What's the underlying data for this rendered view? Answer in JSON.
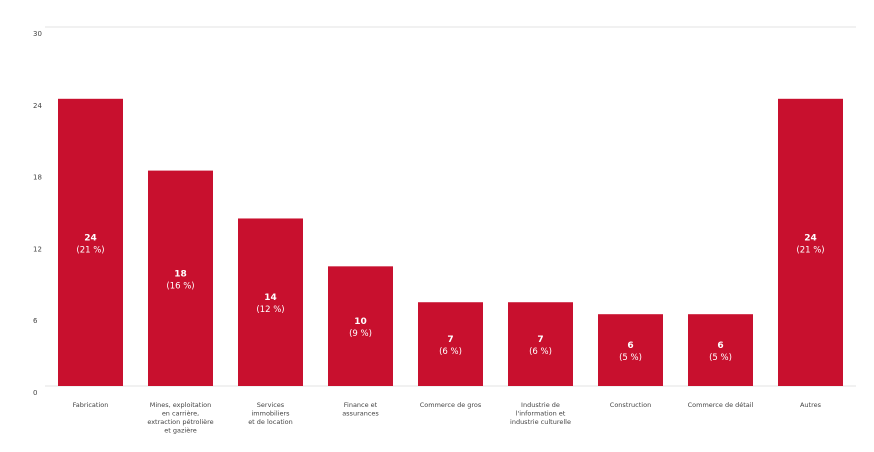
{
  "chart_data": {
    "type": "bar",
    "title": "",
    "xlabel": "",
    "ylabel": "",
    "ylim": [
      0,
      30
    ],
    "yticks": [
      0,
      6,
      12,
      18,
      24,
      30
    ],
    "grid": false,
    "bar_color": "#c8102e",
    "categories": [
      [
        "Fabrication"
      ],
      [
        "Mines, exploitation",
        "en carrière,",
        "extraction pétrolière",
        "et gazière"
      ],
      [
        "Services",
        "immobiliers",
        "et de location"
      ],
      [
        "Finance et",
        "assurances"
      ],
      [
        "Commerce de gros"
      ],
      [
        "Industrie de",
        "l'information et",
        "industrie culturelle"
      ],
      [
        "Construction"
      ],
      [
        "Commerce de détail"
      ],
      [
        "Autres"
      ]
    ],
    "values": [
      24,
      18,
      14,
      10,
      7,
      7,
      6,
      6,
      24
    ],
    "value_labels": [
      "24",
      "18",
      "14",
      "10",
      "7",
      "7",
      "6",
      "6",
      "24"
    ],
    "percent_labels": [
      "(21 %)",
      "(16 %)",
      "(12 %)",
      "(9 %)",
      "(6 %)",
      "(6 %)",
      "(5 %)",
      "(5 %)",
      "(21 %)"
    ]
  }
}
